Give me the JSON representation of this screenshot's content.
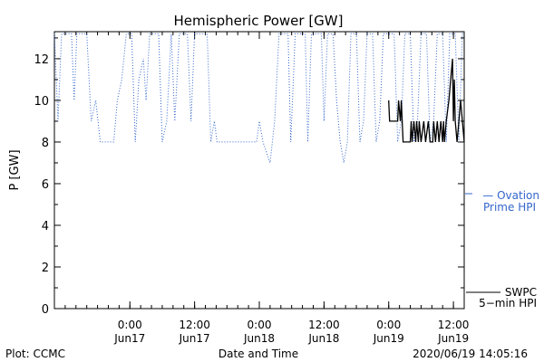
{
  "chart_data": {
    "type": "line",
    "title": "Hemispheric Power [GW]",
    "xlabel": "Date and Time",
    "ylabel": "P [GW]",
    "xlim": [
      "2020-06-16T10:00",
      "2020-06-19T14:00"
    ],
    "ylim": [
      0,
      13.3
    ],
    "yticks": [
      0,
      2,
      4,
      6,
      8,
      10,
      12
    ],
    "xticks": [
      {
        "t": "2020-06-17T00:00",
        "line1": "0:00",
        "line2": "Jun17"
      },
      {
        "t": "2020-06-17T12:00",
        "line1": "12:00",
        "line2": "Jun17"
      },
      {
        "t": "2020-06-18T00:00",
        "line1": "0:00",
        "line2": "Jun18"
      },
      {
        "t": "2020-06-18T12:00",
        "line1": "12:00",
        "line2": "Jun18"
      },
      {
        "t": "2020-06-19T00:00",
        "line1": "0:00",
        "line2": "Jun19"
      },
      {
        "t": "2020-06-19T12:00",
        "line1": "12:00",
        "line2": "Jun19"
      }
    ],
    "series": [
      {
        "name": "Ovation Prime HPI",
        "legend_lines": [
          "— Ovation",
          "Prime HPI"
        ],
        "color": "#3366cc",
        "style": "dotted",
        "points": [
          [
            "2020-06-16T10:00",
            13.2
          ],
          [
            "2020-06-16T10:40",
            9.0
          ],
          [
            "2020-06-16T11:20",
            13.2
          ],
          [
            "2020-06-16T13:10",
            13.2
          ],
          [
            "2020-06-16T13:40",
            10.0
          ],
          [
            "2020-06-16T14:10",
            13.2
          ],
          [
            "2020-06-16T16:00",
            13.2
          ],
          [
            "2020-06-16T16:50",
            9.0
          ],
          [
            "2020-06-16T17:40",
            10.0
          ],
          [
            "2020-06-16T18:30",
            8.0
          ],
          [
            "2020-06-16T21:00",
            8.0
          ],
          [
            "2020-06-16T21:40",
            10.0
          ],
          [
            "2020-06-16T22:30",
            11.0
          ],
          [
            "2020-06-16T23:20",
            13.2
          ],
          [
            "2020-06-17T00:20",
            13.2
          ],
          [
            "2020-06-17T01:00",
            8.0
          ],
          [
            "2020-06-17T01:40",
            11.0
          ],
          [
            "2020-06-17T02:30",
            12.0
          ],
          [
            "2020-06-17T03:00",
            10.0
          ],
          [
            "2020-06-17T03:40",
            13.2
          ],
          [
            "2020-06-17T05:20",
            13.2
          ],
          [
            "2020-06-17T06:00",
            8.0
          ],
          [
            "2020-06-17T06:50",
            9.0
          ],
          [
            "2020-06-17T07:40",
            13.2
          ],
          [
            "2020-06-17T08:20",
            9.0
          ],
          [
            "2020-06-17T09:10",
            13.2
          ],
          [
            "2020-06-17T10:40",
            13.2
          ],
          [
            "2020-06-17T11:20",
            9.0
          ],
          [
            "2020-06-17T12:00",
            13.2
          ],
          [
            "2020-06-17T14:20",
            13.2
          ],
          [
            "2020-06-17T15:00",
            8.0
          ],
          [
            "2020-06-17T15:40",
            9.0
          ],
          [
            "2020-06-17T16:10",
            8.0
          ],
          [
            "2020-06-17T23:30",
            8.0
          ],
          [
            "2020-06-18T00:00",
            9.0
          ],
          [
            "2020-06-18T00:40",
            8.0
          ],
          [
            "2020-06-18T02:00",
            7.0
          ],
          [
            "2020-06-18T02:50",
            9.0
          ],
          [
            "2020-06-18T03:40",
            13.2
          ],
          [
            "2020-06-18T05:20",
            13.2
          ],
          [
            "2020-06-18T05:50",
            8.0
          ],
          [
            "2020-06-18T06:40",
            13.2
          ],
          [
            "2020-06-18T08:30",
            13.2
          ],
          [
            "2020-06-18T09:00",
            8.0
          ],
          [
            "2020-06-18T09:40",
            13.2
          ],
          [
            "2020-06-18T11:30",
            13.2
          ],
          [
            "2020-06-18T12:00",
            9.0
          ],
          [
            "2020-06-18T12:40",
            13.2
          ],
          [
            "2020-06-18T13:40",
            13.2
          ],
          [
            "2020-06-18T14:20",
            10.0
          ],
          [
            "2020-06-18T15:00",
            8.0
          ],
          [
            "2020-06-18T15:40",
            7.0
          ],
          [
            "2020-06-18T16:20",
            8.0
          ],
          [
            "2020-06-18T17:00",
            13.2
          ],
          [
            "2020-06-18T18:00",
            13.2
          ],
          [
            "2020-06-18T18:40",
            8.0
          ],
          [
            "2020-06-18T19:20",
            9.0
          ],
          [
            "2020-06-18T20:00",
            13.2
          ],
          [
            "2020-06-18T21:00",
            13.2
          ],
          [
            "2020-06-18T21:40",
            8.0
          ],
          [
            "2020-06-18T22:20",
            9.0
          ],
          [
            "2020-06-18T23:00",
            13.2
          ],
          [
            "2020-06-19T01:00",
            13.2
          ],
          [
            "2020-06-19T01:40",
            8.0
          ],
          [
            "2020-06-19T02:20",
            9.0
          ],
          [
            "2020-06-19T03:00",
            13.2
          ],
          [
            "2020-06-19T04:00",
            13.2
          ],
          [
            "2020-06-19T04:40",
            8.0
          ],
          [
            "2020-06-19T05:20",
            9.0
          ],
          [
            "2020-06-19T06:00",
            13.2
          ],
          [
            "2020-06-19T07:00",
            13.2
          ],
          [
            "2020-06-19T07:40",
            8.0
          ],
          [
            "2020-06-19T08:20",
            9.0
          ],
          [
            "2020-06-19T09:00",
            13.2
          ],
          [
            "2020-06-19T10:00",
            13.2
          ],
          [
            "2020-06-19T10:40",
            8.0
          ],
          [
            "2020-06-19T11:20",
            13.2
          ],
          [
            "2020-06-19T12:20",
            13.2
          ],
          [
            "2020-06-19T13:00",
            8.0
          ],
          [
            "2020-06-19T13:40",
            13.2
          ],
          [
            "2020-06-19T14:00",
            13.2
          ]
        ]
      },
      {
        "name": "SWPC 5-min HPI",
        "legend_lines": [
          "SWPC",
          "5−min HPI"
        ],
        "color": "#000000",
        "style": "solid",
        "points": [
          [
            "2020-06-19T00:00",
            10.0
          ],
          [
            "2020-06-19T00:10",
            9.0
          ],
          [
            "2020-06-19T01:40",
            9.0
          ],
          [
            "2020-06-19T01:50",
            10.0
          ],
          [
            "2020-06-19T02:10",
            9.0
          ],
          [
            "2020-06-19T02:20",
            10.0
          ],
          [
            "2020-06-19T02:40",
            8.0
          ],
          [
            "2020-06-19T04:00",
            8.0
          ],
          [
            "2020-06-19T04:10",
            9.0
          ],
          [
            "2020-06-19T04:20",
            8.0
          ],
          [
            "2020-06-19T04:40",
            9.0
          ],
          [
            "2020-06-19T05:00",
            8.0
          ],
          [
            "2020-06-19T05:10",
            9.0
          ],
          [
            "2020-06-19T05:30",
            8.0
          ],
          [
            "2020-06-19T05:40",
            9.0
          ],
          [
            "2020-06-19T06:00",
            8.0
          ],
          [
            "2020-06-19T06:30",
            9.0
          ],
          [
            "2020-06-19T06:50",
            8.0
          ],
          [
            "2020-06-19T07:20",
            9.0
          ],
          [
            "2020-06-19T07:40",
            8.0
          ],
          [
            "2020-06-19T08:10",
            8.0
          ],
          [
            "2020-06-19T08:20",
            9.0
          ],
          [
            "2020-06-19T08:40",
            8.0
          ],
          [
            "2020-06-19T09:00",
            9.0
          ],
          [
            "2020-06-19T09:20",
            8.0
          ],
          [
            "2020-06-19T09:40",
            9.0
          ],
          [
            "2020-06-19T10:00",
            8.0
          ],
          [
            "2020-06-19T10:10",
            9.0
          ],
          [
            "2020-06-19T10:20",
            8.0
          ],
          [
            "2020-06-19T10:40",
            9.0
          ],
          [
            "2020-06-19T11:10",
            10.0
          ],
          [
            "2020-06-19T11:30",
            11.0
          ],
          [
            "2020-06-19T11:50",
            12.0
          ],
          [
            "2020-06-19T12:00",
            9.0
          ],
          [
            "2020-06-19T12:10",
            11.0
          ],
          [
            "2020-06-19T12:20",
            9.0
          ],
          [
            "2020-06-19T12:40",
            8.0
          ],
          [
            "2020-06-19T13:00",
            9.0
          ],
          [
            "2020-06-19T13:20",
            10.0
          ],
          [
            "2020-06-19T13:40",
            9.0
          ],
          [
            "2020-06-19T14:00",
            8.0
          ]
        ]
      }
    ]
  },
  "footer": {
    "left": "Plot: CCMC",
    "center": "Date and Time",
    "right": "2020/06/19 14:05:16"
  }
}
